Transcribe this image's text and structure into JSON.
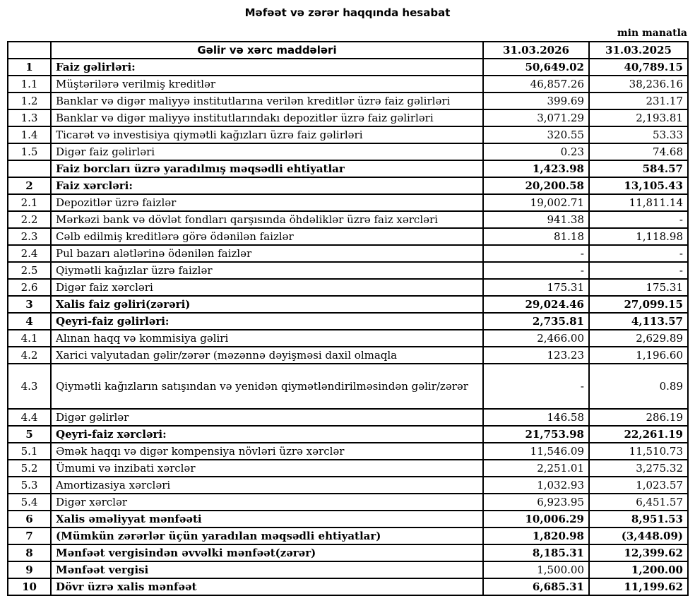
{
  "title": "Məfəət və zərər haqqında hesabat",
  "unit_note": "min manatla",
  "table": {
    "headers": {
      "num": "",
      "item": "Gəlir və xərc maddələri",
      "period1": "31.03.2026",
      "period2": "31.03.2025"
    },
    "rows": [
      {
        "num": "1",
        "label": "Faiz gəlirləri:",
        "v1": "50,649.02",
        "v2": "40,789.15",
        "bold": true
      },
      {
        "num": "1.1",
        "label": "Müştərilərə verilmiş kreditlər",
        "v1": "46,857.26",
        "v2": "38,236.16"
      },
      {
        "num": "1.2",
        "label": "Banklar və digər maliyyə institutlarına verilən kreditlər üzrə faiz gəlirləri",
        "v1": "399.69",
        "v2": "231.17"
      },
      {
        "num": "1.3",
        "label": "Banklar və digər maliyyə institutlarındakı depozitlər üzrə faiz gəlirləri",
        "v1": "3,071.29",
        "v2": "2,193.81"
      },
      {
        "num": "1.4",
        "label": "Ticarət və investisiya qiymətli kağızları üzrə faiz gəlirləri",
        "v1": "320.55",
        "v2": "53.33"
      },
      {
        "num": "1.5",
        "label": "Digər faiz gəlirləri",
        "v1": "0.23",
        "v2": "74.68"
      },
      {
        "num": "",
        "label": "Faiz borcları üzrə yaradılmış məqsədli ehtiyatlar",
        "v1": "1,423.98",
        "v2": "584.57",
        "bold": true
      },
      {
        "num": "2",
        "label": "Faiz xərcləri:",
        "v1": "20,200.58",
        "v2": "13,105.43",
        "bold": true
      },
      {
        "num": "2.1",
        "label": "Depozitlər üzrə faizlər",
        "v1": "19,002.71",
        "v2": "11,811.14"
      },
      {
        "num": "2.2",
        "label": "Mərkəzi bank və dövlət fondları qarşısında öhdəliklər üzrə faiz xərcləri",
        "v1": "941.38",
        "v2": "-"
      },
      {
        "num": "2.3",
        "label": "Cəlb edilmiş kreditlərə görə ödənilən faizlər",
        "v1": "81.18",
        "v2": "1,118.98"
      },
      {
        "num": "2.4",
        "label": "Pul bazarı alətlərinə ödənilən faizlər",
        "v1": "-",
        "v2": "-"
      },
      {
        "num": "2.5",
        "label": "Qiymətli kağızlar üzrə faizlər",
        "v1": "-",
        "v2": "-"
      },
      {
        "num": "2.6",
        "label": "Digər faiz xərcləri",
        "v1": "175.31",
        "v2": "175.31"
      },
      {
        "num": "3",
        "label": "Xalis faiz gəliri(zərəri)",
        "v1": "29,024.46",
        "v2": "27,099.15",
        "bold": true
      },
      {
        "num": "4",
        "label": "Qeyri-faiz gəlirləri:",
        "v1": "2,735.81",
        "v2": "4,113.57",
        "bold": true
      },
      {
        "num": "4.1",
        "label": "Alınan haqq və kommisiya gəliri",
        "v1": "2,466.00",
        "v2": "2,629.89"
      },
      {
        "num": "4.2",
        "label": "Xarici valyutadan gəlir/zərər (məzənnə dəyişməsi daxil olmaqla",
        "v1": "123.23",
        "v2": "1,196.60"
      },
      {
        "num": "4.3",
        "label": "Qiymətli kağızların satışından və yenidən qiymətləndirilməsindən gəlir/zərər",
        "v1": "-",
        "v2": "0.89",
        "tall": true
      },
      {
        "num": "4.4",
        "label": "Digər gəlirlər",
        "v1": "146.58",
        "v2": "286.19"
      },
      {
        "num": "5",
        "label": "Qeyri-faiz xərcləri:",
        "v1": "21,753.98",
        "v2": "22,261.19",
        "bold": true
      },
      {
        "num": "5.1",
        "label": "Əmək haqqı və digər kompensiya növləri üzrə xərclər",
        "v1": "11,546.09",
        "v2": "11,510.73"
      },
      {
        "num": "5.2",
        "label": "Ümumi və inzibati xərclər",
        "v1": "2,251.01",
        "v2": "3,275.32"
      },
      {
        "num": "5.3",
        "label": "Amortizasiya xərcləri",
        "v1": "1,032.93",
        "v2": "1,023.57"
      },
      {
        "num": "5.4",
        "label": "Digər xərclər",
        "v1": "6,923.95",
        "v2": "6,451.57"
      },
      {
        "num": "6",
        "label": "Xalis əməliyyat mənfəəti",
        "v1": "10,006.29",
        "v2": "8,951.53",
        "bold": true
      },
      {
        "num": "7",
        "label": "(Mümkün zərərlər üçün yaradılan məqsədli ehtiyatlar)",
        "v1": "1,820.98",
        "v2": "(3,448.09)",
        "bold": true
      },
      {
        "num": "8",
        "label": "Mənfəət vergisindən əvvəlki mənfəət(zərər)",
        "v1": "8,185.31",
        "v2": "12,399.62",
        "bold": true
      },
      {
        "num": "9",
        "label": "Mənfəət vergisi",
        "v1": "1,500.00",
        "v2": "1,200.00",
        "bold": true,
        "v1_regular": true
      },
      {
        "num": "10",
        "label": "Dövr üzrə xalis mənfəət",
        "v1": "6,685.31",
        "v2": "11,199.62",
        "bold": true
      }
    ]
  }
}
